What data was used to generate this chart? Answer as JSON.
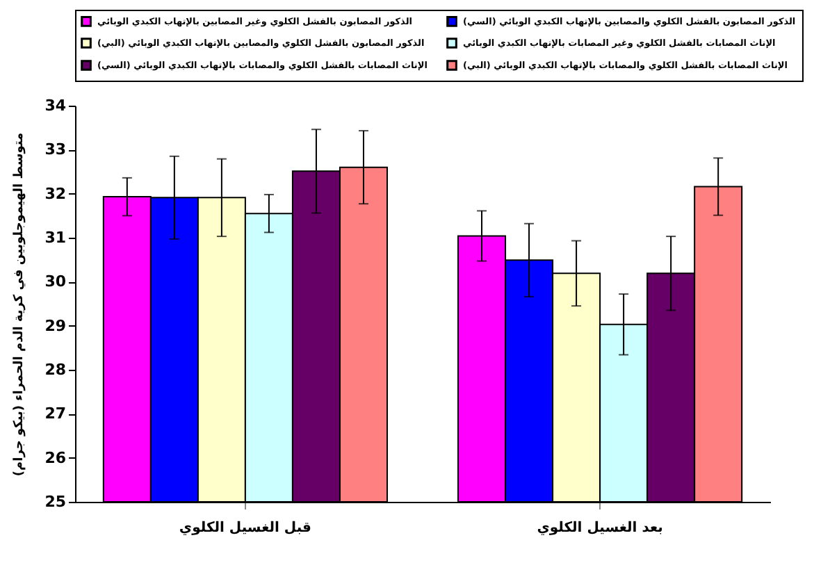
{
  "chart_data": {
    "type": "bar",
    "ylabel": "متوسط الهيموجلوبين في كرية الدم الحمراء (بيكو جرام)",
    "categories": [
      "قبل الغسيل الكلوي",
      "بعد الغسيل الكلوي"
    ],
    "series": [
      {
        "name": "الذكور المصابون بالفشل الكلوي وغير المصابين بالإتهاب الكبدي الوبائي",
        "color": "#ff00ff",
        "values": [
          31.93,
          31.04
        ],
        "errors": [
          0.43,
          0.57
        ]
      },
      {
        "name": "الذكور المصابون بالفشل الكلوي والمصابين بالإتهاب الكبدي الوبائي (السي)",
        "color": "#0000ff",
        "values": [
          31.91,
          30.49
        ],
        "errors": [
          0.94,
          0.83
        ]
      },
      {
        "name": "الذكور المصابون بالفشل الكلوي والمصابين بالإتهاب الكبدي الوبائي (البي)",
        "color": "#ffffcc",
        "values": [
          31.91,
          30.19
        ],
        "errors": [
          0.88,
          0.74
        ]
      },
      {
        "name": "الإناث المصابات بالفشل الكلوي وغير المصابات بالإتهاب الكبدي الوبائي",
        "color": "#ccffff",
        "values": [
          31.55,
          29.03
        ],
        "errors": [
          0.43,
          0.69
        ]
      },
      {
        "name": "الإناث المصابات بالفشل الكلوي والمصابات بالإتهاب الكبدي الوبائي (السي)",
        "color": "#660066",
        "values": [
          32.51,
          30.19
        ],
        "errors": [
          0.95,
          0.84
        ]
      },
      {
        "name": "الإناث المصابات بالفشل الكلوي والمصابات بالإتهاب الكبدي الوبائي (البي)",
        "color": "#ff8080",
        "values": [
          32.6,
          32.16
        ],
        "errors": [
          0.83,
          0.65
        ]
      }
    ],
    "ylim": [
      25,
      34
    ],
    "yticks": [
      25,
      26,
      27,
      28,
      29,
      30,
      31,
      32,
      33,
      34
    ],
    "grid": false,
    "legend": "top"
  }
}
